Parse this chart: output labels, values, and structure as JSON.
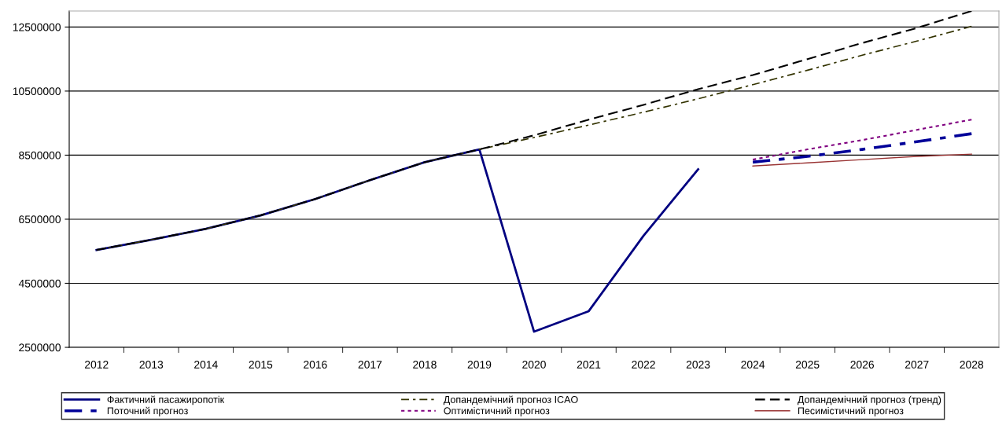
{
  "chart_data": {
    "type": "line",
    "categories": [
      "2012",
      "2013",
      "2014",
      "2015",
      "2016",
      "2017",
      "2018",
      "2019",
      "2020",
      "2021",
      "2022",
      "2023",
      "2024",
      "2025",
      "2026",
      "2027",
      "2028"
    ],
    "series": [
      {
        "name": "Фактичний пасажиропотік",
        "color": "#000080",
        "line_style": "solid",
        "values": [
          5540000,
          5860000,
          6200000,
          6620000,
          7130000,
          7720000,
          8280000,
          8680000,
          2990000,
          3630000,
          5980000,
          8060000,
          null,
          null,
          null,
          null,
          null
        ]
      },
      {
        "name": "Допандемічний прогноз ICAO",
        "color": "#333300",
        "line_style": "dashdot",
        "values": [
          5540000,
          5860000,
          6200000,
          6620000,
          7130000,
          7720000,
          8280000,
          8680000,
          9050000,
          9440000,
          9840000,
          10260000,
          10700000,
          11150000,
          11620000,
          12060000,
          12520000
        ]
      },
      {
        "name": "Допандемічний прогноз (тренд)",
        "color": "#000000",
        "line_style": "dashed",
        "values": [
          5540000,
          5860000,
          6200000,
          6620000,
          7130000,
          7720000,
          8280000,
          8680000,
          9120000,
          9610000,
          10070000,
          10560000,
          11000000,
          11500000,
          12000000,
          12470000,
          13000000
        ]
      },
      {
        "name": "Поточний прогноз",
        "color": "#000099",
        "line_style": "dashdot",
        "values": [
          null,
          null,
          null,
          null,
          null,
          null,
          null,
          null,
          null,
          null,
          null,
          null,
          8280000,
          8460000,
          8680000,
          8920000,
          9170000
        ]
      },
      {
        "name": "Оптимістичний прогноз",
        "color": "#800080",
        "line_style": "dotted",
        "values": [
          null,
          null,
          null,
          null,
          null,
          null,
          null,
          null,
          null,
          null,
          null,
          null,
          8360000,
          8680000,
          8970000,
          9290000,
          9610000
        ]
      },
      {
        "name": "Песимістичний прогноз",
        "color": "#993333",
        "line_style": "solid",
        "values": [
          null,
          null,
          null,
          null,
          null,
          null,
          null,
          null,
          null,
          null,
          null,
          null,
          8160000,
          8260000,
          8360000,
          8460000,
          8530000
        ]
      }
    ],
    "ylim": [
      2500000,
      13000000
    ],
    "yticks": [
      2500000,
      4500000,
      6500000,
      8500000,
      10500000,
      12500000
    ],
    "grid": "y",
    "legend": "bottom",
    "marker": "none"
  }
}
